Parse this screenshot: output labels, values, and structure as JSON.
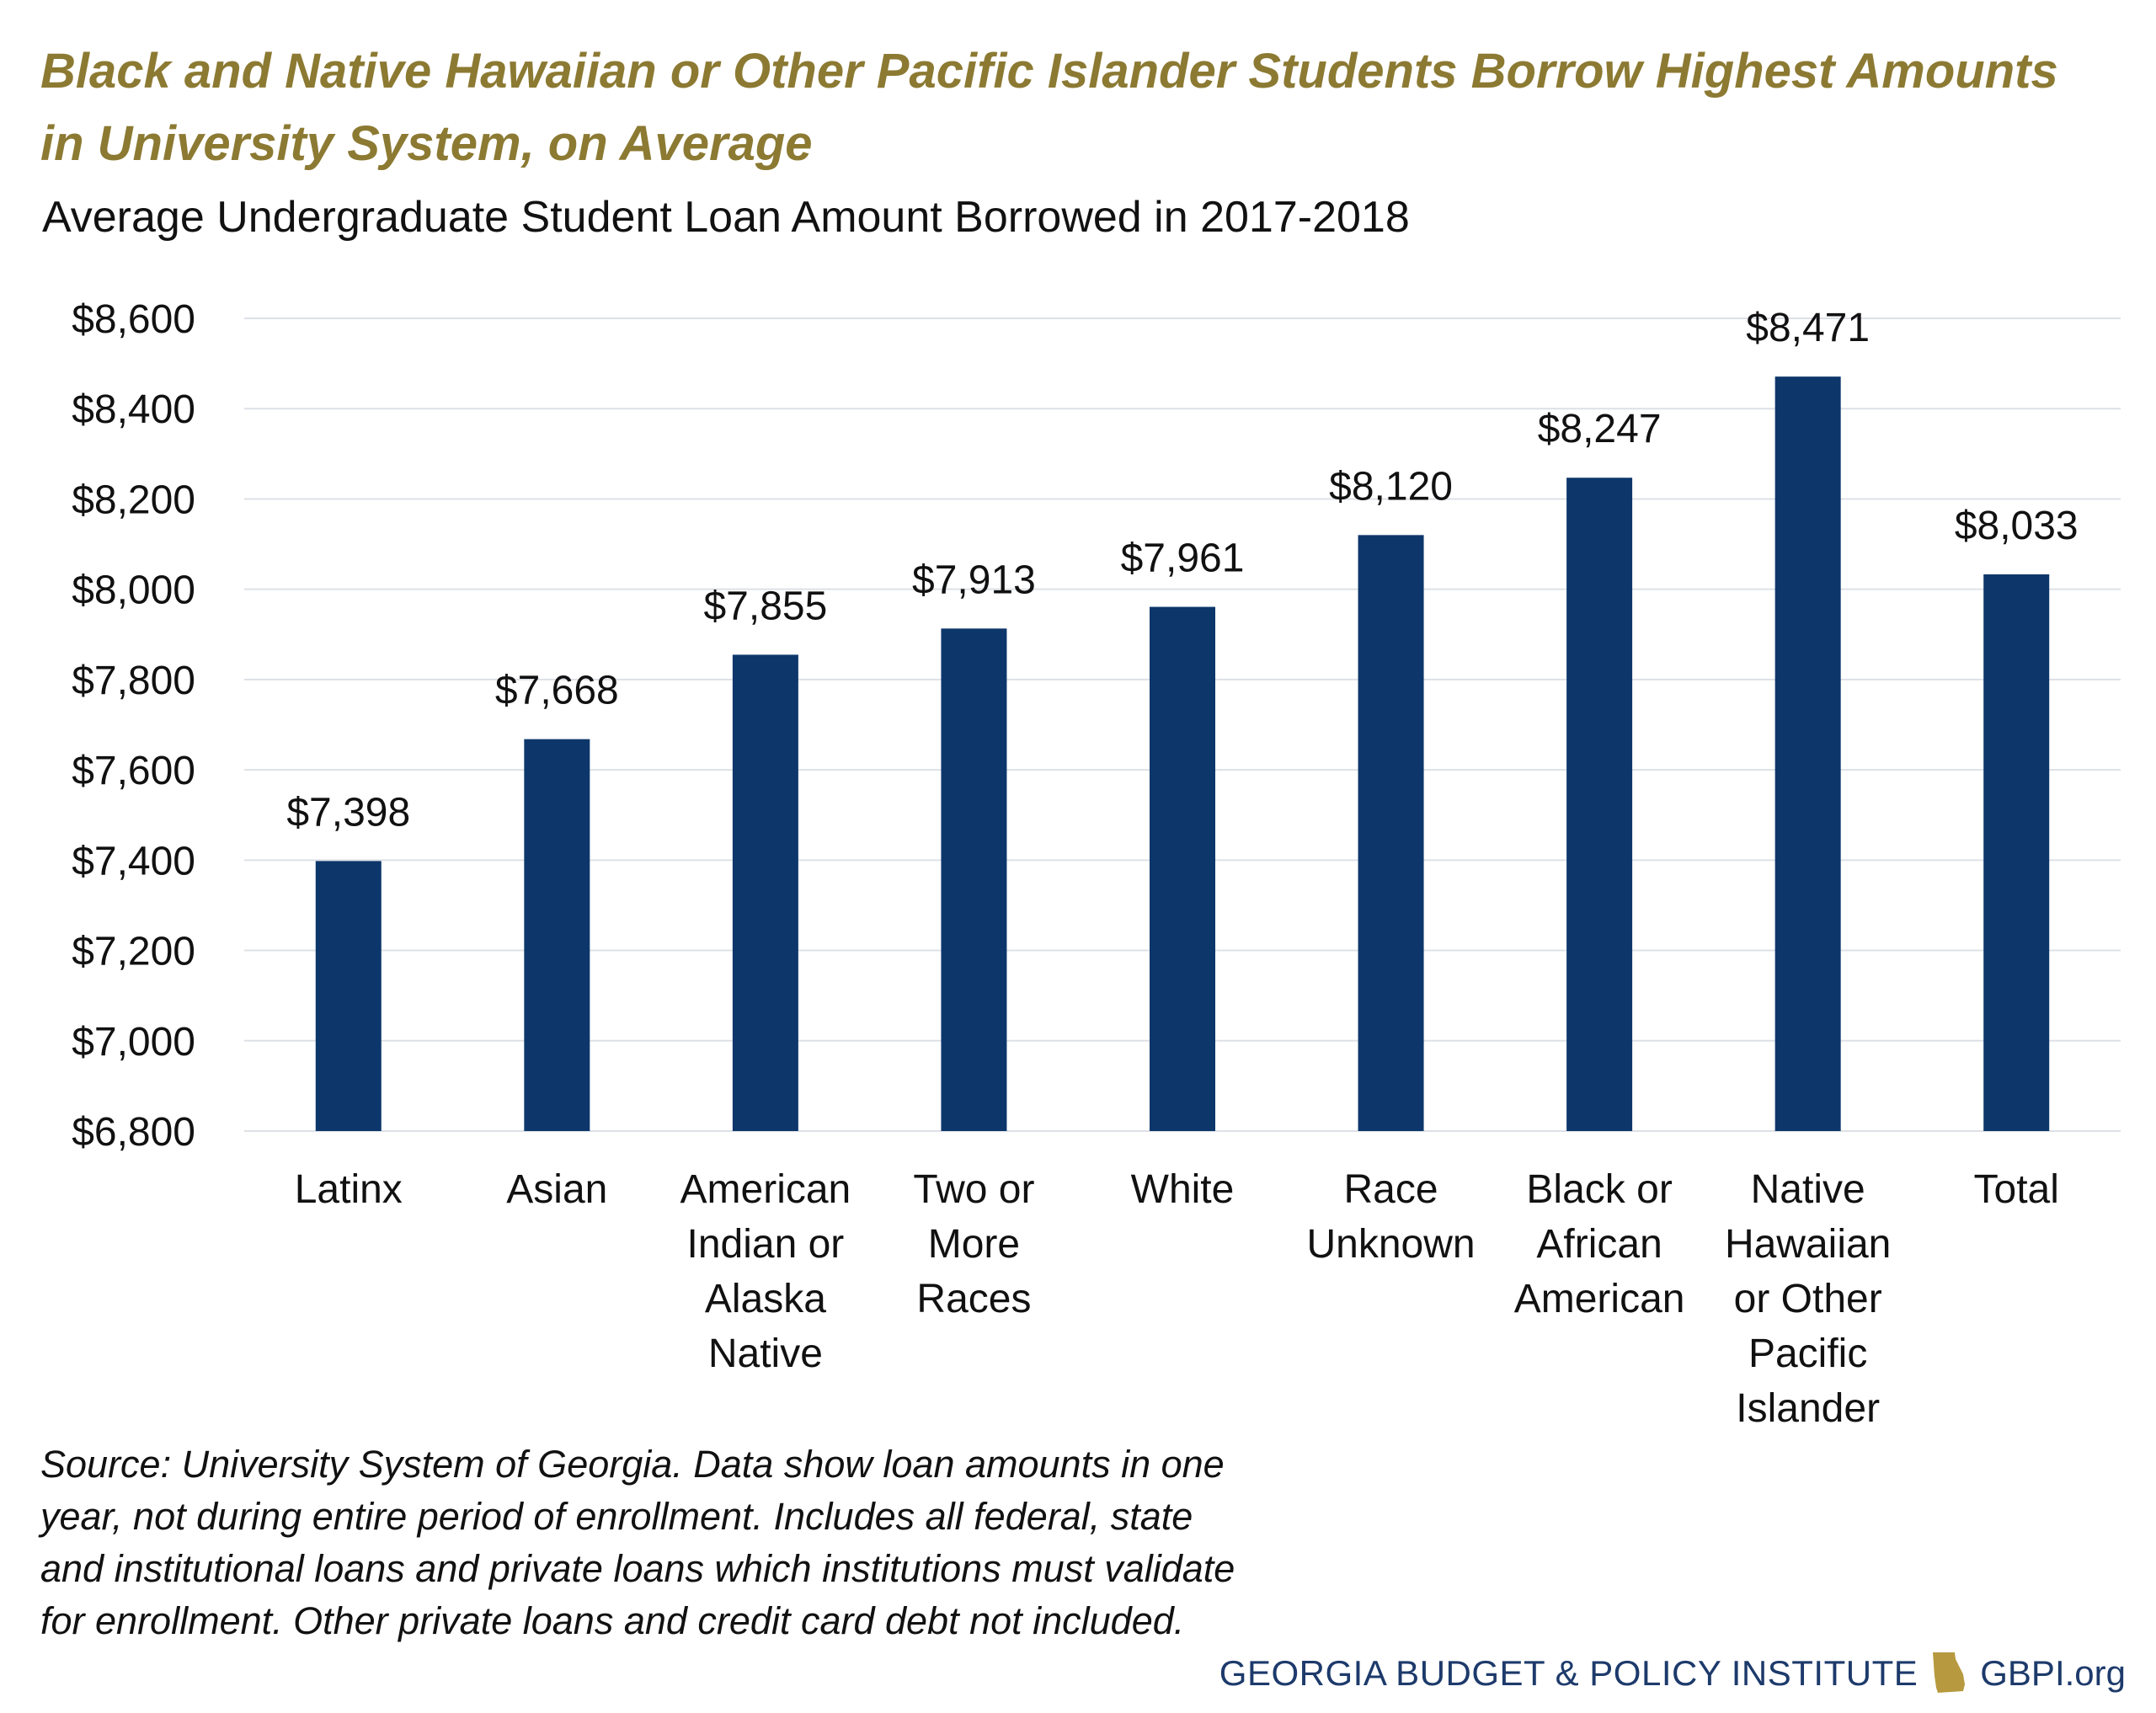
{
  "title": "Black and Native Hawaiian or Other Pacific Islander Students Borrow Highest Amounts in University System, on Average",
  "subtitle": "Average Undergraduate Student Loan Amount Borrowed in 2017-2018",
  "source": "Source: University System of Georgia. Data show loan amounts in one year, not during entire period of enrollment. Includes all federal, state and institutional loans and private loans which institutions must validate for enrollment. Other private loans and credit card debt not included.",
  "branding": {
    "organization": "GEORGIA BUDGET & POLICY INSTITUTE",
    "website": "GBPI.org",
    "logo_icon": "georgia-state-outline-icon"
  },
  "colors": {
    "bar": "#0d376b",
    "title": "#8c7a33",
    "gridline": "#dde1e6",
    "brand": "#1d3a6b"
  },
  "chart_data": {
    "type": "bar",
    "title": "Average Undergraduate Student Loan Amount Borrowed in 2017-2018",
    "xlabel": "",
    "ylabel": "",
    "ylim": [
      6800,
      8600
    ],
    "yticks": [
      "$6,800",
      "$7,000",
      "$7,200",
      "$7,400",
      "$7,600",
      "$7,800",
      "$8,000",
      "$8,200",
      "$8,400",
      "$8,600"
    ],
    "ytick_values": [
      6800,
      7000,
      7200,
      7400,
      7600,
      7800,
      8000,
      8200,
      8400,
      8600
    ],
    "grid": true,
    "legend": "none",
    "categories": [
      [
        "Latinx"
      ],
      [
        "Asian"
      ],
      [
        "American",
        "Indian or",
        "Alaska",
        "Native"
      ],
      [
        "Two or",
        "More",
        "Races"
      ],
      [
        "White"
      ],
      [
        "Race",
        "Unknown"
      ],
      [
        "Black or",
        "African",
        "American"
      ],
      [
        "Native",
        "Hawaiian",
        "or Other",
        "Pacific",
        "Islander"
      ],
      [
        "Total"
      ]
    ],
    "values": [
      7398,
      7668,
      7855,
      7913,
      7961,
      8120,
      8247,
      8471,
      8033
    ],
    "data_labels": [
      "$7,398",
      "$7,668",
      "$7,855",
      "$7,913",
      "$7,961",
      "$8,120",
      "$8,247",
      "$8,471",
      "$8,033"
    ]
  }
}
